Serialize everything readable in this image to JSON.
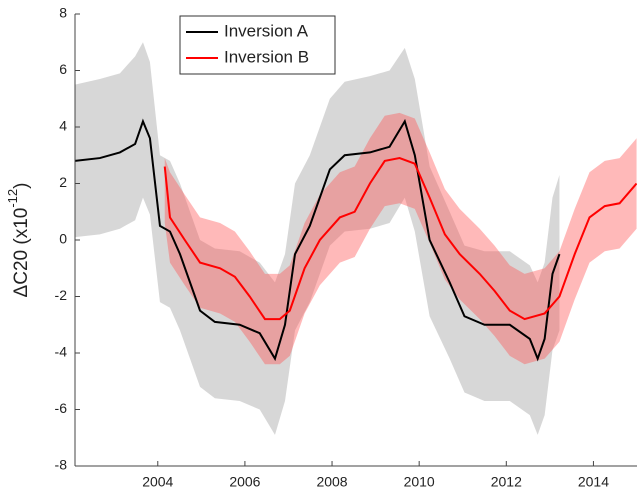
{
  "chart_data": {
    "type": "line",
    "ylabel": "ΔC20 (x10",
    "ylabel_exponent": "-12",
    "ylabel_close": ")",
    "xlim": [
      2002.1,
      2015.0
    ],
    "xticks": [
      2004,
      2006,
      2008,
      2010,
      2012,
      2014
    ],
    "ylim": [
      -8,
      8
    ],
    "yticks": [
      -8,
      -6,
      -4,
      -2,
      0,
      2,
      4,
      6,
      8
    ],
    "legend": "top-left",
    "series": [
      {
        "name": "Inversion A",
        "color": "#000000",
        "band_color": "#9a9a9a",
        "x": [
          2002.1,
          2002.67,
          2003.13,
          2003.48,
          2003.66,
          2003.82,
          2004.05,
          2004.28,
          2004.51,
          2004.97,
          2005.31,
          2005.88,
          2006.34,
          2006.69,
          2006.92,
          2007.15,
          2007.49,
          2007.95,
          2008.29,
          2008.87,
          2009.32,
          2009.67,
          2009.9,
          2010.24,
          2010.7,
          2011.04,
          2011.5,
          2012.08,
          2012.54,
          2012.72,
          2012.88,
          2013.06,
          2013.22
        ],
        "values": [
          2.8,
          2.9,
          3.1,
          3.4,
          4.2,
          3.6,
          0.5,
          0.3,
          -0.5,
          -2.5,
          -2.9,
          -3.0,
          -3.3,
          -4.2,
          -3.0,
          -0.5,
          0.5,
          2.5,
          3.0,
          3.1,
          3.3,
          4.2,
          3.0,
          0.0,
          -1.5,
          -2.7,
          -3.0,
          -3.0,
          -3.5,
          -4.2,
          -3.5,
          -1.2,
          -0.5
        ],
        "upper": [
          5.5,
          5.7,
          5.9,
          6.5,
          7.0,
          6.3,
          3.0,
          2.8,
          2.0,
          0.0,
          -0.3,
          -0.4,
          -0.8,
          -1.5,
          -0.5,
          2.0,
          3.0,
          5.0,
          5.6,
          5.8,
          6.0,
          6.8,
          5.7,
          2.6,
          1.0,
          -0.2,
          -0.4,
          -0.4,
          -0.9,
          -1.5,
          -0.8,
          1.5,
          2.3
        ],
        "lower": [
          0.1,
          0.2,
          0.4,
          0.7,
          1.5,
          0.9,
          -2.2,
          -2.4,
          -3.2,
          -5.2,
          -5.6,
          -5.7,
          -6.0,
          -6.9,
          -5.7,
          -3.2,
          -2.2,
          -0.2,
          0.3,
          0.4,
          0.6,
          1.5,
          0.3,
          -2.7,
          -4.2,
          -5.4,
          -5.7,
          -5.7,
          -6.2,
          -6.9,
          -6.2,
          -3.9,
          -3.2
        ]
      },
      {
        "name": "Inversion B",
        "color": "#ff0000",
        "band_color": "#ff5050",
        "x": [
          2004.16,
          2004.28,
          2004.62,
          2004.97,
          2005.43,
          2005.77,
          2006.11,
          2006.46,
          2006.8,
          2007.03,
          2007.37,
          2007.72,
          2008.18,
          2008.52,
          2008.87,
          2009.21,
          2009.55,
          2009.9,
          2010.24,
          2010.59,
          2010.93,
          2011.39,
          2011.73,
          2012.08,
          2012.42,
          2012.88,
          2013.22,
          2013.57,
          2013.91,
          2014.26,
          2014.6,
          2014.99
        ],
        "values": [
          2.6,
          0.8,
          0.0,
          -0.8,
          -1.0,
          -1.3,
          -2.0,
          -2.8,
          -2.8,
          -2.5,
          -1.0,
          0.0,
          0.8,
          1.0,
          2.0,
          2.8,
          2.9,
          2.7,
          1.5,
          0.2,
          -0.5,
          -1.2,
          -1.8,
          -2.5,
          -2.8,
          -2.6,
          -2.0,
          -0.5,
          0.8,
          1.2,
          1.3,
          2.0
        ],
        "upper": [
          2.9,
          2.4,
          1.6,
          0.8,
          0.6,
          0.3,
          -0.4,
          -1.2,
          -1.2,
          -0.9,
          0.6,
          1.6,
          2.4,
          2.6,
          3.6,
          4.4,
          4.5,
          4.3,
          3.1,
          1.8,
          1.1,
          0.4,
          -0.2,
          -0.9,
          -1.2,
          -1.0,
          -0.4,
          1.1,
          2.4,
          2.8,
          2.9,
          3.6
        ],
        "lower": [
          0.6,
          -0.8,
          -1.6,
          -2.4,
          -2.6,
          -2.9,
          -3.6,
          -4.4,
          -4.4,
          -4.1,
          -2.6,
          -1.6,
          -0.8,
          -0.6,
          0.4,
          1.2,
          1.3,
          1.1,
          -0.1,
          -1.4,
          -2.1,
          -2.8,
          -3.4,
          -4.1,
          -4.4,
          -4.2,
          -3.6,
          -2.1,
          -0.8,
          -0.4,
          -0.3,
          0.4
        ]
      }
    ]
  }
}
